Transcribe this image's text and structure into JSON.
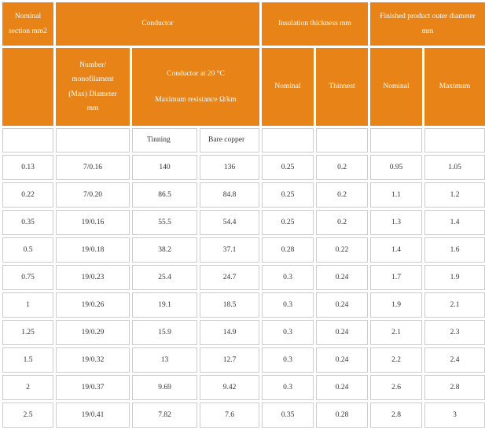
{
  "colors": {
    "header_bg": "#e88317",
    "header_text": "#ffffff",
    "cell_border": "#cccccc",
    "cell_text": "#333333"
  },
  "headers": {
    "nominal_section": [
      "Nominal",
      "section mm2"
    ],
    "conductor": "Conductor",
    "insulation_thickness": "Insulation thickness mm",
    "finished_outer_diameter": [
      "Finished product outer diameter",
      "mm"
    ],
    "monofilament": [
      "Number/",
      "monofilament",
      "(Max) Diameter",
      "mm"
    ],
    "conductor_resistance": [
      "Conductor at 20 °C",
      "Maximum resistance Ω/km"
    ],
    "insulation_nominal": "Nominal",
    "insulation_thinnest": "Thinnest",
    "outer_nominal": "Nominal",
    "outer_maximum": "Maximum",
    "tinning": "Tinning",
    "bare_copper": "Bare copper"
  },
  "rows": [
    [
      "0.13",
      "7/0.16",
      "140",
      "136",
      "0.25",
      "0.2",
      "0.95",
      "1.05"
    ],
    [
      "0.22",
      "7/0.20",
      "86.5",
      "84.8",
      "0.25",
      "0.2",
      "1.1",
      "1.2"
    ],
    [
      "0.35",
      "19/0.16",
      "55.5",
      "54.4",
      "0.25",
      "0.2",
      "1.3",
      "1.4"
    ],
    [
      "0.5",
      "19/0.18",
      "38.2",
      "37.1",
      "0.28",
      "0.22",
      "1.4",
      "1.6"
    ],
    [
      "0.75",
      "19/0.23",
      "25.4",
      "24.7",
      "0.3",
      "0.24",
      "1.7",
      "1.9"
    ],
    [
      "1",
      "19/0.26",
      "19.1",
      "18.5",
      "0.3",
      "0.24",
      "1.9",
      "2.1"
    ],
    [
      "1.25",
      "19/0.29",
      "15.9",
      "14.9",
      "0.3",
      "0.24",
      "2.1",
      "2.3"
    ],
    [
      "1.5",
      "19/0.32",
      "13",
      "12.7",
      "0.3",
      "0.24",
      "2.2",
      "2.4"
    ],
    [
      "2",
      "19/0.37",
      "9.69",
      "9.42",
      "0.3",
      "0.24",
      "2.6",
      "2.8"
    ],
    [
      "2.5",
      "19/0.41",
      "7.82",
      "7.6",
      "0.35",
      "0.28",
      "2.8",
      "3"
    ]
  ]
}
